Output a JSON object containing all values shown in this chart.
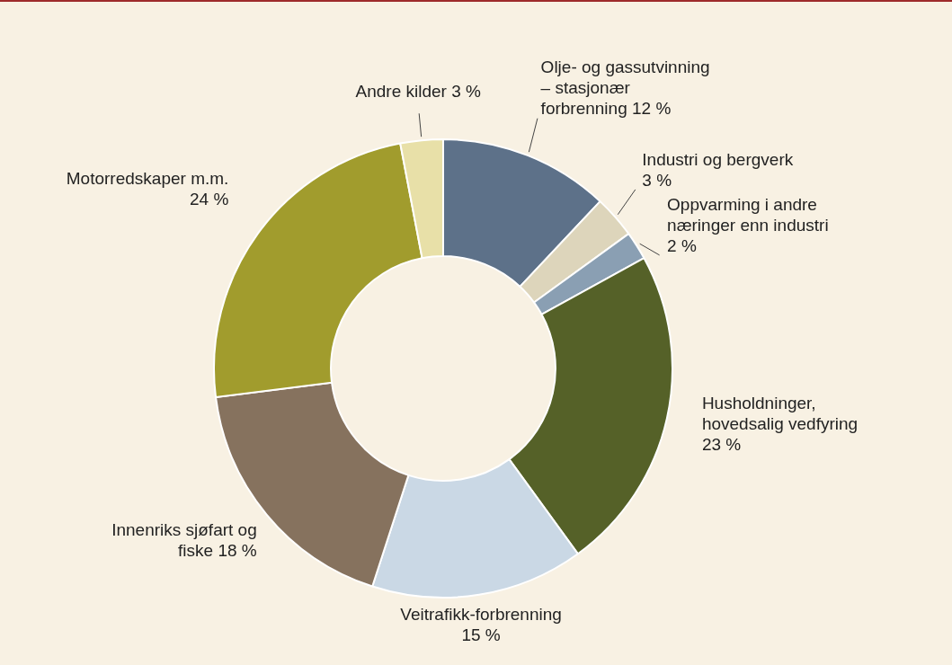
{
  "chart_data": {
    "type": "donut",
    "categories": [
      "Olje- og gassutvinning – stasjonær forbrenning",
      "Industri og bergverk",
      "Oppvarming i andre næringer enn industri",
      "Husholdninger, hovedsalig vedfyring",
      "Veitrafikk-forbrenning",
      "Innenriks sjøfart og fiske",
      "Motorredskaper m.m.",
      "Andre kilder"
    ],
    "values": [
      12,
      3,
      2,
      23,
      15,
      18,
      24,
      3
    ],
    "value_labels": [
      "12 %",
      "3 %",
      "2 %",
      "23 %",
      "15 %",
      "18 %",
      "24 %",
      "3 %"
    ],
    "colors": [
      "#5d7189",
      "#ddd5bb",
      "#8a9fb3",
      "#556128",
      "#cad8e5",
      "#86725e",
      "#a19c2d",
      "#e8e0a8"
    ],
    "legend": false
  }
}
